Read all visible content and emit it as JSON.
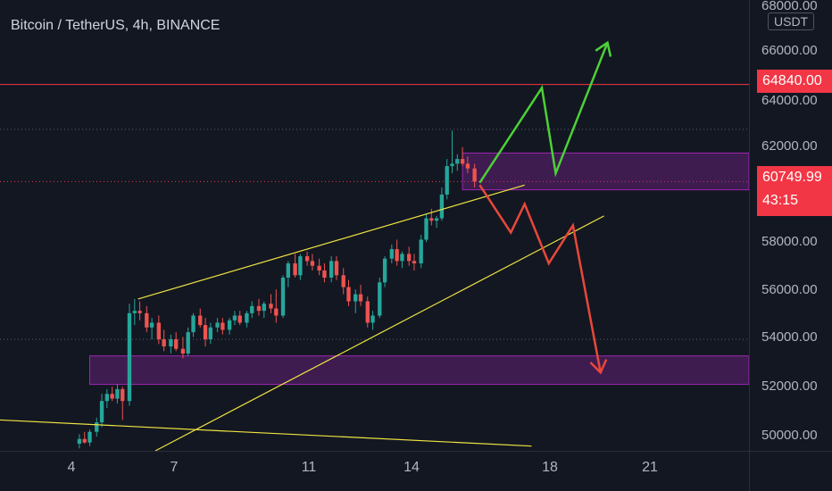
{
  "header": {
    "title": "Bitcoin / TetherUS, 4h, BINANCE"
  },
  "axis": {
    "currency": "USDT",
    "y_ticks": [
      "68000.00",
      "66000.00",
      "64000.00",
      "62000.00",
      "58000.00",
      "56000.00",
      "54000.00",
      "52000.00",
      "50000.00"
    ],
    "x_ticks": [
      "4",
      "7",
      "11",
      "14",
      "18",
      "21"
    ]
  },
  "levels": {
    "resistance": {
      "value": 64840,
      "label": "64840.00",
      "color": "#f23645"
    },
    "last_price": {
      "value": 60749.99,
      "label": "60749.99",
      "countdown": "43:15",
      "color": "#f23645"
    }
  },
  "colors": {
    "background": "#131722",
    "up_candle": "#26a69a",
    "down_candle": "#ef5350",
    "zone_fill": "#9c27b0",
    "trendline": "#f0e442",
    "bull_arrow": "#4cd137",
    "bear_arrow": "#e8483a"
  },
  "chart_data": {
    "type": "candlestick",
    "title": "Bitcoin / TetherUS, 4h, BINANCE",
    "timeframe": "4h",
    "y_unit": "USDT",
    "ylim": [
      49400,
      68400
    ],
    "x_day_range": [
      2.6,
      24.3
    ],
    "grid": false,
    "horizontal_lines": [
      {
        "price": 64840,
        "style": "solid",
        "color": "#f23645"
      },
      {
        "price": 62950,
        "style": "dotted",
        "color": "#5d606b"
      },
      {
        "price": 60750,
        "style": "dotted",
        "color": "#f23645"
      },
      {
        "price": 54100,
        "style": "dotted",
        "color": "#5d606b"
      }
    ],
    "zones": [
      {
        "day_from": 16.0,
        "day_to": 24.3,
        "price_from": 60400,
        "price_to": 61950
      },
      {
        "day_from": 5.2,
        "day_to": 24.3,
        "price_from": 52200,
        "price_to": 53400
      }
    ],
    "trendlines": [
      {
        "from": [
          6.6,
          55800
        ],
        "to": [
          17.8,
          60600
        ]
      },
      {
        "from": [
          7.1,
          49400
        ],
        "to": [
          20.1,
          59300
        ]
      },
      {
        "from": [
          2.6,
          50700
        ],
        "to": [
          18.0,
          49600
        ]
      }
    ],
    "arrows": [
      {
        "name": "bullish",
        "points": [
          [
            16.5,
            60700
          ],
          [
            18.3,
            64700
          ],
          [
            18.7,
            61100
          ],
          [
            20.2,
            66600
          ]
        ]
      },
      {
        "name": "bearish",
        "points": [
          [
            16.5,
            60600
          ],
          [
            17.4,
            58600
          ],
          [
            17.8,
            59800
          ],
          [
            18.5,
            57300
          ],
          [
            19.2,
            58900
          ],
          [
            20.0,
            52700
          ]
        ]
      }
    ],
    "candles": [
      [
        4.9,
        49700,
        50100,
        49500,
        49900
      ],
      [
        5.05,
        49900,
        50200,
        49700,
        49750
      ],
      [
        5.2,
        49750,
        50300,
        49600,
        50200
      ],
      [
        5.4,
        50200,
        50800,
        50000,
        50600
      ],
      [
        5.55,
        50600,
        51800,
        50400,
        51500
      ],
      [
        5.7,
        51500,
        52000,
        51200,
        51800
      ],
      [
        5.85,
        51800,
        52100,
        51500,
        51600
      ],
      [
        6.0,
        51600,
        52200,
        51400,
        52000
      ],
      [
        6.15,
        52000,
        52100,
        50700,
        51500
      ],
      [
        6.35,
        51500,
        55600,
        51300,
        55200
      ],
      [
        6.5,
        55200,
        55800,
        54700,
        55300
      ],
      [
        6.65,
        55300,
        55700,
        54900,
        55200
      ],
      [
        6.85,
        55200,
        55500,
        54400,
        54600
      ],
      [
        7.0,
        54600,
        55000,
        54100,
        54800
      ],
      [
        7.2,
        54800,
        55100,
        53900,
        54100
      ],
      [
        7.35,
        54100,
        54500,
        53600,
        53800
      ],
      [
        7.55,
        53800,
        54300,
        53500,
        54100
      ],
      [
        7.7,
        54100,
        54400,
        53600,
        53700
      ],
      [
        7.9,
        53700,
        54200,
        53300,
        53500
      ],
      [
        8.05,
        53500,
        54600,
        53400,
        54400
      ],
      [
        8.2,
        54400,
        55200,
        54200,
        55100
      ],
      [
        8.4,
        55100,
        55400,
        54600,
        54700
      ],
      [
        8.55,
        54700,
        55000,
        53800,
        54100
      ],
      [
        8.7,
        54100,
        54800,
        53900,
        54600
      ],
      [
        8.9,
        54600,
        55000,
        54400,
        54800
      ],
      [
        9.05,
        54800,
        55000,
        54300,
        54500
      ],
      [
        9.25,
        54500,
        55000,
        54300,
        54900
      ],
      [
        9.4,
        54900,
        55300,
        54700,
        55100
      ],
      [
        9.55,
        55100,
        55300,
        54700,
        54800
      ],
      [
        9.75,
        54800,
        55300,
        54600,
        55200
      ],
      [
        9.9,
        55200,
        55700,
        55000,
        55500
      ],
      [
        10.1,
        55500,
        55800,
        55100,
        55300
      ],
      [
        10.25,
        55300,
        55700,
        55000,
        55600
      ],
      [
        10.45,
        55600,
        56000,
        55200,
        55400
      ],
      [
        10.6,
        55400,
        56200,
        54800,
        55100
      ],
      [
        10.8,
        55100,
        56800,
        55000,
        56700
      ],
      [
        10.95,
        56700,
        57400,
        56300,
        57300
      ],
      [
        11.15,
        57300,
        57700,
        56700,
        56800
      ],
      [
        11.3,
        56800,
        57700,
        56600,
        57600
      ],
      [
        11.5,
        57600,
        57800,
        57200,
        57400
      ],
      [
        11.65,
        57400,
        57700,
        57000,
        57200
      ],
      [
        11.85,
        57200,
        57500,
        56800,
        57000
      ],
      [
        12.0,
        57000,
        57300,
        56500,
        56700
      ],
      [
        12.2,
        56700,
        57600,
        56500,
        57400
      ],
      [
        12.35,
        57400,
        57600,
        56600,
        56800
      ],
      [
        12.55,
        56800,
        57100,
        56000,
        56300
      ],
      [
        12.7,
        56300,
        56600,
        55500,
        55700
      ],
      [
        12.9,
        55700,
        56200,
        55200,
        56000
      ],
      [
        13.05,
        56000,
        56400,
        55500,
        55700
      ],
      [
        13.25,
        55700,
        55900,
        54600,
        54800
      ],
      [
        13.4,
        54800,
        55300,
        54500,
        55100
      ],
      [
        13.6,
        55100,
        56700,
        55000,
        56500
      ],
      [
        13.75,
        56500,
        57600,
        56300,
        57500
      ],
      [
        13.95,
        57500,
        58100,
        57300,
        57900
      ],
      [
        14.1,
        57900,
        58300,
        57200,
        57400
      ],
      [
        14.25,
        57400,
        57800,
        57100,
        57700
      ],
      [
        14.45,
        57700,
        58000,
        57200,
        57400
      ],
      [
        14.6,
        57400,
        57700,
        57000,
        57300
      ],
      [
        14.8,
        57300,
        58500,
        57100,
        58300
      ],
      [
        14.95,
        58300,
        59400,
        58200,
        59200
      ],
      [
        15.1,
        59200,
        59600,
        58900,
        59100
      ],
      [
        15.25,
        59100,
        59300,
        58800,
        59200
      ],
      [
        15.4,
        59200,
        60500,
        59100,
        60200
      ],
      [
        15.55,
        60200,
        61700,
        60000,
        61400
      ],
      [
        15.7,
        61400,
        62900,
        61100,
        61500
      ],
      [
        15.85,
        61500,
        61900,
        61200,
        61700
      ],
      [
        16.0,
        61700,
        62200,
        61400,
        61500
      ],
      [
        16.15,
        61500,
        61800,
        61100,
        61300
      ],
      [
        16.35,
        61300,
        61500,
        60500,
        60750
      ]
    ]
  }
}
